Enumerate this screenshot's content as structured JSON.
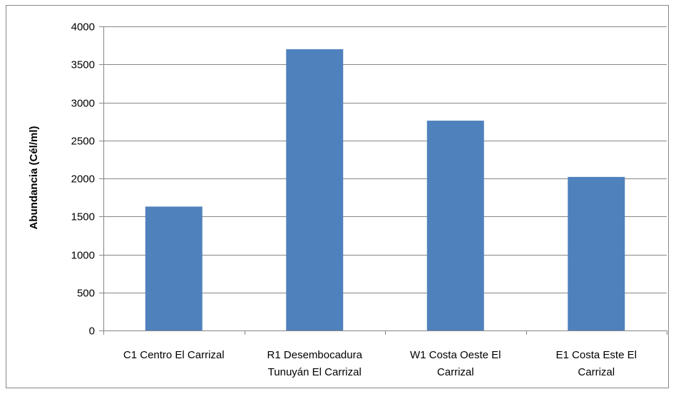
{
  "chart_data": {
    "type": "bar",
    "categories": [
      [
        "C1 Centro El Carrizal"
      ],
      [
        "R1 Desembocadura",
        "Tunuyán El Carrizal"
      ],
      [
        "W1 Costa Oeste El",
        "Carrizal"
      ],
      [
        "E1 Costa  Este El",
        "Carrizal"
      ]
    ],
    "values": [
      1630,
      3700,
      2760,
      2020
    ],
    "ylabel": "Abundancia  (Cél/ml)",
    "ylim": [
      0,
      4000
    ],
    "yticks": [
      0,
      500,
      1000,
      1500,
      2000,
      2500,
      3000,
      3500,
      4000
    ],
    "grid": true,
    "legend": "none",
    "bar_color": "#4F81BD",
    "grid_color": "#868686"
  }
}
